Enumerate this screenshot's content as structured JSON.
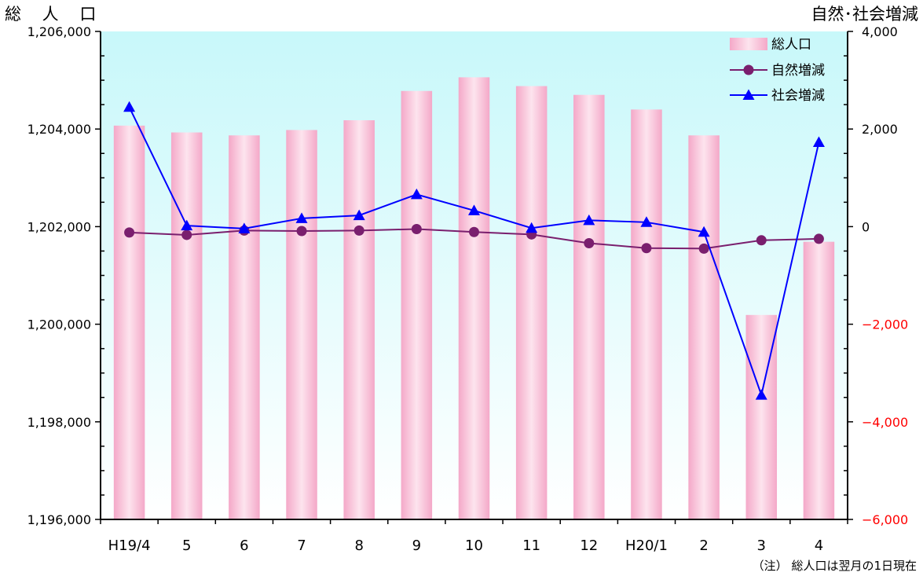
{
  "title_left": "総 人 口",
  "title_right": "自然･社会増減",
  "note": "（注） 総人口は翌月の1日現在",
  "colors": {
    "bar_fill_dark": "#f4a8c8",
    "bar_fill_light": "#fde4ee",
    "plot_bg_top": "#c8f8fa",
    "plot_bg_bottom": "#ffffff",
    "natural_line": "#7a1f6e",
    "social_line": "#0000ff",
    "negative_tick": "#ff0000"
  },
  "chart_data": {
    "type": "bar",
    "categories": [
      "H19/4",
      "5",
      "6",
      "7",
      "8",
      "9",
      "10",
      "11",
      "12",
      "H20/1",
      "2",
      "3",
      "4"
    ],
    "left_axis": {
      "ylim": [
        1196000,
        1206000
      ],
      "ticks": [
        1196000,
        1198000,
        1200000,
        1202000,
        1204000,
        1206000
      ],
      "tick_labels": [
        "1,196,000",
        "1,198,000",
        "1,200,000",
        "1,202,000",
        "1,204,000",
        "1,206,000"
      ]
    },
    "right_axis": {
      "ylim": [
        -6000,
        4000
      ],
      "ticks": [
        -6000,
        -4000,
        -2000,
        0,
        2000,
        4000
      ],
      "tick_labels": [
        "−6,000",
        "−4,000",
        "−2,000",
        "0",
        "2,000",
        "4,000"
      ]
    },
    "series": [
      {
        "name": "総人口",
        "type": "bar",
        "axis": "left",
        "values": [
          1204070,
          1203930,
          1203870,
          1203980,
          1204180,
          1204780,
          1205060,
          1204880,
          1204700,
          1204400,
          1203870,
          1200190,
          1201690
        ]
      },
      {
        "name": "自然増減",
        "type": "line",
        "marker": "circle",
        "axis": "right",
        "values": [
          -120,
          -170,
          -80,
          -90,
          -80,
          -50,
          -110,
          -160,
          -340,
          -440,
          -450,
          -280,
          -250
        ]
      },
      {
        "name": "社会増減",
        "type": "line",
        "marker": "triangle",
        "axis": "right",
        "values": [
          2450,
          20,
          -40,
          170,
          230,
          660,
          330,
          -30,
          130,
          90,
          -110,
          -3450,
          1730
        ]
      }
    ],
    "legend_position": "top-right",
    "grid": false
  }
}
